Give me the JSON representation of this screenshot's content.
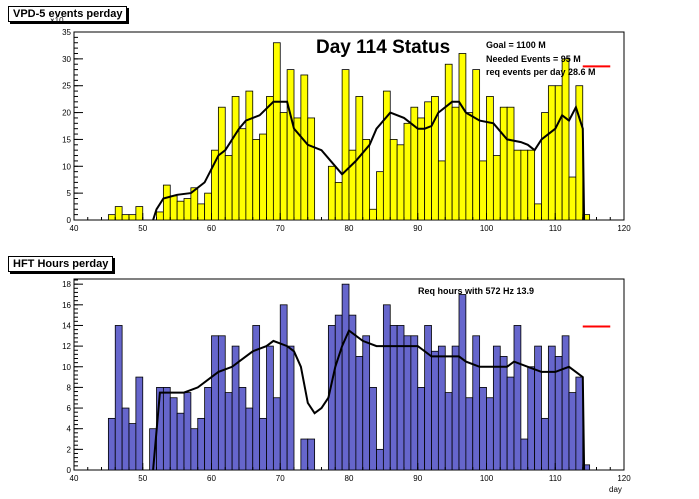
{
  "chart_data": [
    {
      "type": "bar",
      "title": "VPD-5 events perday",
      "exponent_label": "×10",
      "big_title": "Day 114 Status",
      "annotations": [
        "Goal =  1100 M",
        "Needed Events =    95 M",
        "req events per day 28.6 M"
      ],
      "xlim": [
        40,
        120
      ],
      "ylim": [
        0,
        35
      ],
      "x_ticks": [
        40,
        50,
        60,
        70,
        80,
        90,
        100,
        110,
        120
      ],
      "y_ticks": [
        0,
        5,
        10,
        15,
        20,
        25,
        30,
        35
      ],
      "bar_color": "#ffff00",
      "line_color": "#000000",
      "req_marker_color": "#ff0000",
      "req_marker_value": 28.6,
      "bins_x": [
        45,
        46,
        47,
        48,
        49,
        50,
        51,
        52,
        53,
        54,
        55,
        56,
        57,
        58,
        59,
        60,
        61,
        62,
        63,
        64,
        65,
        66,
        67,
        68,
        69,
        70,
        71,
        72,
        73,
        74,
        75,
        76,
        77,
        78,
        79,
        80,
        81,
        82,
        83,
        84,
        85,
        86,
        87,
        88,
        89,
        90,
        91,
        92,
        93,
        94,
        95,
        96,
        97,
        98,
        99,
        100,
        101,
        102,
        103,
        104,
        105,
        106,
        107,
        108,
        109,
        110,
        111,
        112,
        113,
        114
      ],
      "bins_y": [
        1,
        2.5,
        1,
        1,
        2.5,
        0,
        0,
        1.5,
        6.5,
        4.5,
        3.5,
        4,
        6,
        3,
        5,
        13,
        21,
        12,
        23,
        17,
        24,
        15,
        16,
        23,
        33,
        20,
        28,
        19,
        27,
        19,
        0,
        0,
        10,
        7,
        28,
        13,
        23,
        15,
        2,
        9,
        24,
        15,
        14,
        18,
        21,
        19,
        22,
        23,
        11,
        29,
        21,
        31,
        20,
        28,
        11,
        23,
        12,
        21,
        21,
        13,
        13,
        13,
        3,
        20,
        25,
        25,
        30,
        8,
        25,
        1
      ],
      "avg_line": [
        [
          51.5,
          0
        ],
        [
          52,
          2
        ],
        [
          53,
          4
        ],
        [
          55,
          4.7
        ],
        [
          57,
          5
        ],
        [
          59,
          7
        ],
        [
          61,
          12
        ],
        [
          62,
          13
        ],
        [
          64,
          17
        ],
        [
          65,
          18.5
        ],
        [
          67,
          19.5
        ],
        [
          69,
          22
        ],
        [
          71,
          22
        ],
        [
          72,
          17
        ],
        [
          74,
          14
        ],
        [
          76,
          13
        ],
        [
          78,
          10
        ],
        [
          79,
          8.5
        ],
        [
          81,
          11
        ],
        [
          83,
          14
        ],
        [
          84,
          17
        ],
        [
          86,
          20
        ],
        [
          88,
          19
        ],
        [
          90,
          17
        ],
        [
          91,
          17
        ],
        [
          92,
          17.5
        ],
        [
          93,
          20
        ],
        [
          95,
          22
        ],
        [
          96,
          22
        ],
        [
          97,
          20
        ],
        [
          99,
          18.5
        ],
        [
          101,
          18
        ],
        [
          103,
          15
        ],
        [
          105,
          14.5
        ],
        [
          106,
          14
        ],
        [
          107,
          13
        ],
        [
          108,
          15
        ],
        [
          110,
          17
        ],
        [
          111,
          19.5
        ],
        [
          112,
          18.5
        ],
        [
          113,
          21
        ],
        [
          114,
          17
        ],
        [
          114.2,
          0
        ]
      ]
    },
    {
      "type": "bar",
      "title": "HFT Hours perday",
      "annotation": "Req hours with  572 Hz 13.9",
      "xlabel": "day",
      "xlim": [
        40,
        120
      ],
      "ylim": [
        0,
        18.5
      ],
      "x_ticks": [
        40,
        50,
        60,
        70,
        80,
        90,
        100,
        110,
        120
      ],
      "y_ticks": [
        0,
        2,
        4,
        6,
        8,
        10,
        12,
        14,
        16,
        18
      ],
      "bar_color": "#6666cc",
      "line_color": "#000000",
      "req_marker_color": "#ff0000",
      "req_marker_value": 13.9,
      "bins_x": [
        45,
        46,
        47,
        48,
        49,
        50,
        51,
        52,
        53,
        54,
        55,
        56,
        57,
        58,
        59,
        60,
        61,
        62,
        63,
        64,
        65,
        66,
        67,
        68,
        69,
        70,
        71,
        72,
        73,
        74,
        75,
        76,
        77,
        78,
        79,
        80,
        81,
        82,
        83,
        84,
        85,
        86,
        87,
        88,
        89,
        90,
        91,
        92,
        93,
        94,
        95,
        96,
        97,
        98,
        99,
        100,
        101,
        102,
        103,
        104,
        105,
        106,
        107,
        108,
        109,
        110,
        111,
        112,
        113,
        114
      ],
      "bins_y": [
        5,
        14,
        6,
        4.5,
        9,
        0,
        4,
        8,
        8,
        7,
        5.5,
        7.5,
        4,
        5,
        8,
        13,
        13,
        7.5,
        12,
        8,
        6,
        14,
        5,
        12,
        7,
        16,
        12,
        0,
        3,
        3,
        0,
        0,
        14,
        15,
        18,
        15,
        11,
        13,
        8,
        2,
        16,
        14,
        14,
        13,
        13,
        8,
        14,
        11.5,
        12,
        7.5,
        12,
        17,
        7,
        13,
        8,
        7,
        12,
        11,
        9,
        14,
        3,
        10,
        12,
        5,
        12,
        11,
        13,
        7.5,
        9,
        0.5
      ],
      "avg_line": [
        [
          51.5,
          0
        ],
        [
          52.5,
          7.5
        ],
        [
          54,
          7.5
        ],
        [
          56,
          7.5
        ],
        [
          58,
          8
        ],
        [
          60,
          9
        ],
        [
          61,
          9.5
        ],
        [
          63,
          10
        ],
        [
          64,
          10.5
        ],
        [
          66,
          11.5
        ],
        [
          68,
          12
        ],
        [
          69,
          12.5
        ],
        [
          71,
          12
        ],
        [
          72,
          11.5
        ],
        [
          73,
          10
        ],
        [
          74,
          6.5
        ],
        [
          75,
          5.5
        ],
        [
          76,
          6
        ],
        [
          77,
          7
        ],
        [
          78,
          10
        ],
        [
          79,
          12
        ],
        [
          80,
          13.5
        ],
        [
          82,
          12.5
        ],
        [
          84,
          12
        ],
        [
          86,
          12
        ],
        [
          88,
          12
        ],
        [
          90,
          12
        ],
        [
          92,
          11
        ],
        [
          94,
          11
        ],
        [
          96,
          11
        ],
        [
          97,
          10.5
        ],
        [
          99,
          10
        ],
        [
          101,
          10
        ],
        [
          103,
          10
        ],
        [
          104,
          10.5
        ],
        [
          106,
          10
        ],
        [
          108,
          9.5
        ],
        [
          110,
          9.5
        ],
        [
          112,
          10
        ],
        [
          113,
          9.5
        ],
        [
          114,
          9
        ],
        [
          114.2,
          0
        ]
      ]
    }
  ]
}
